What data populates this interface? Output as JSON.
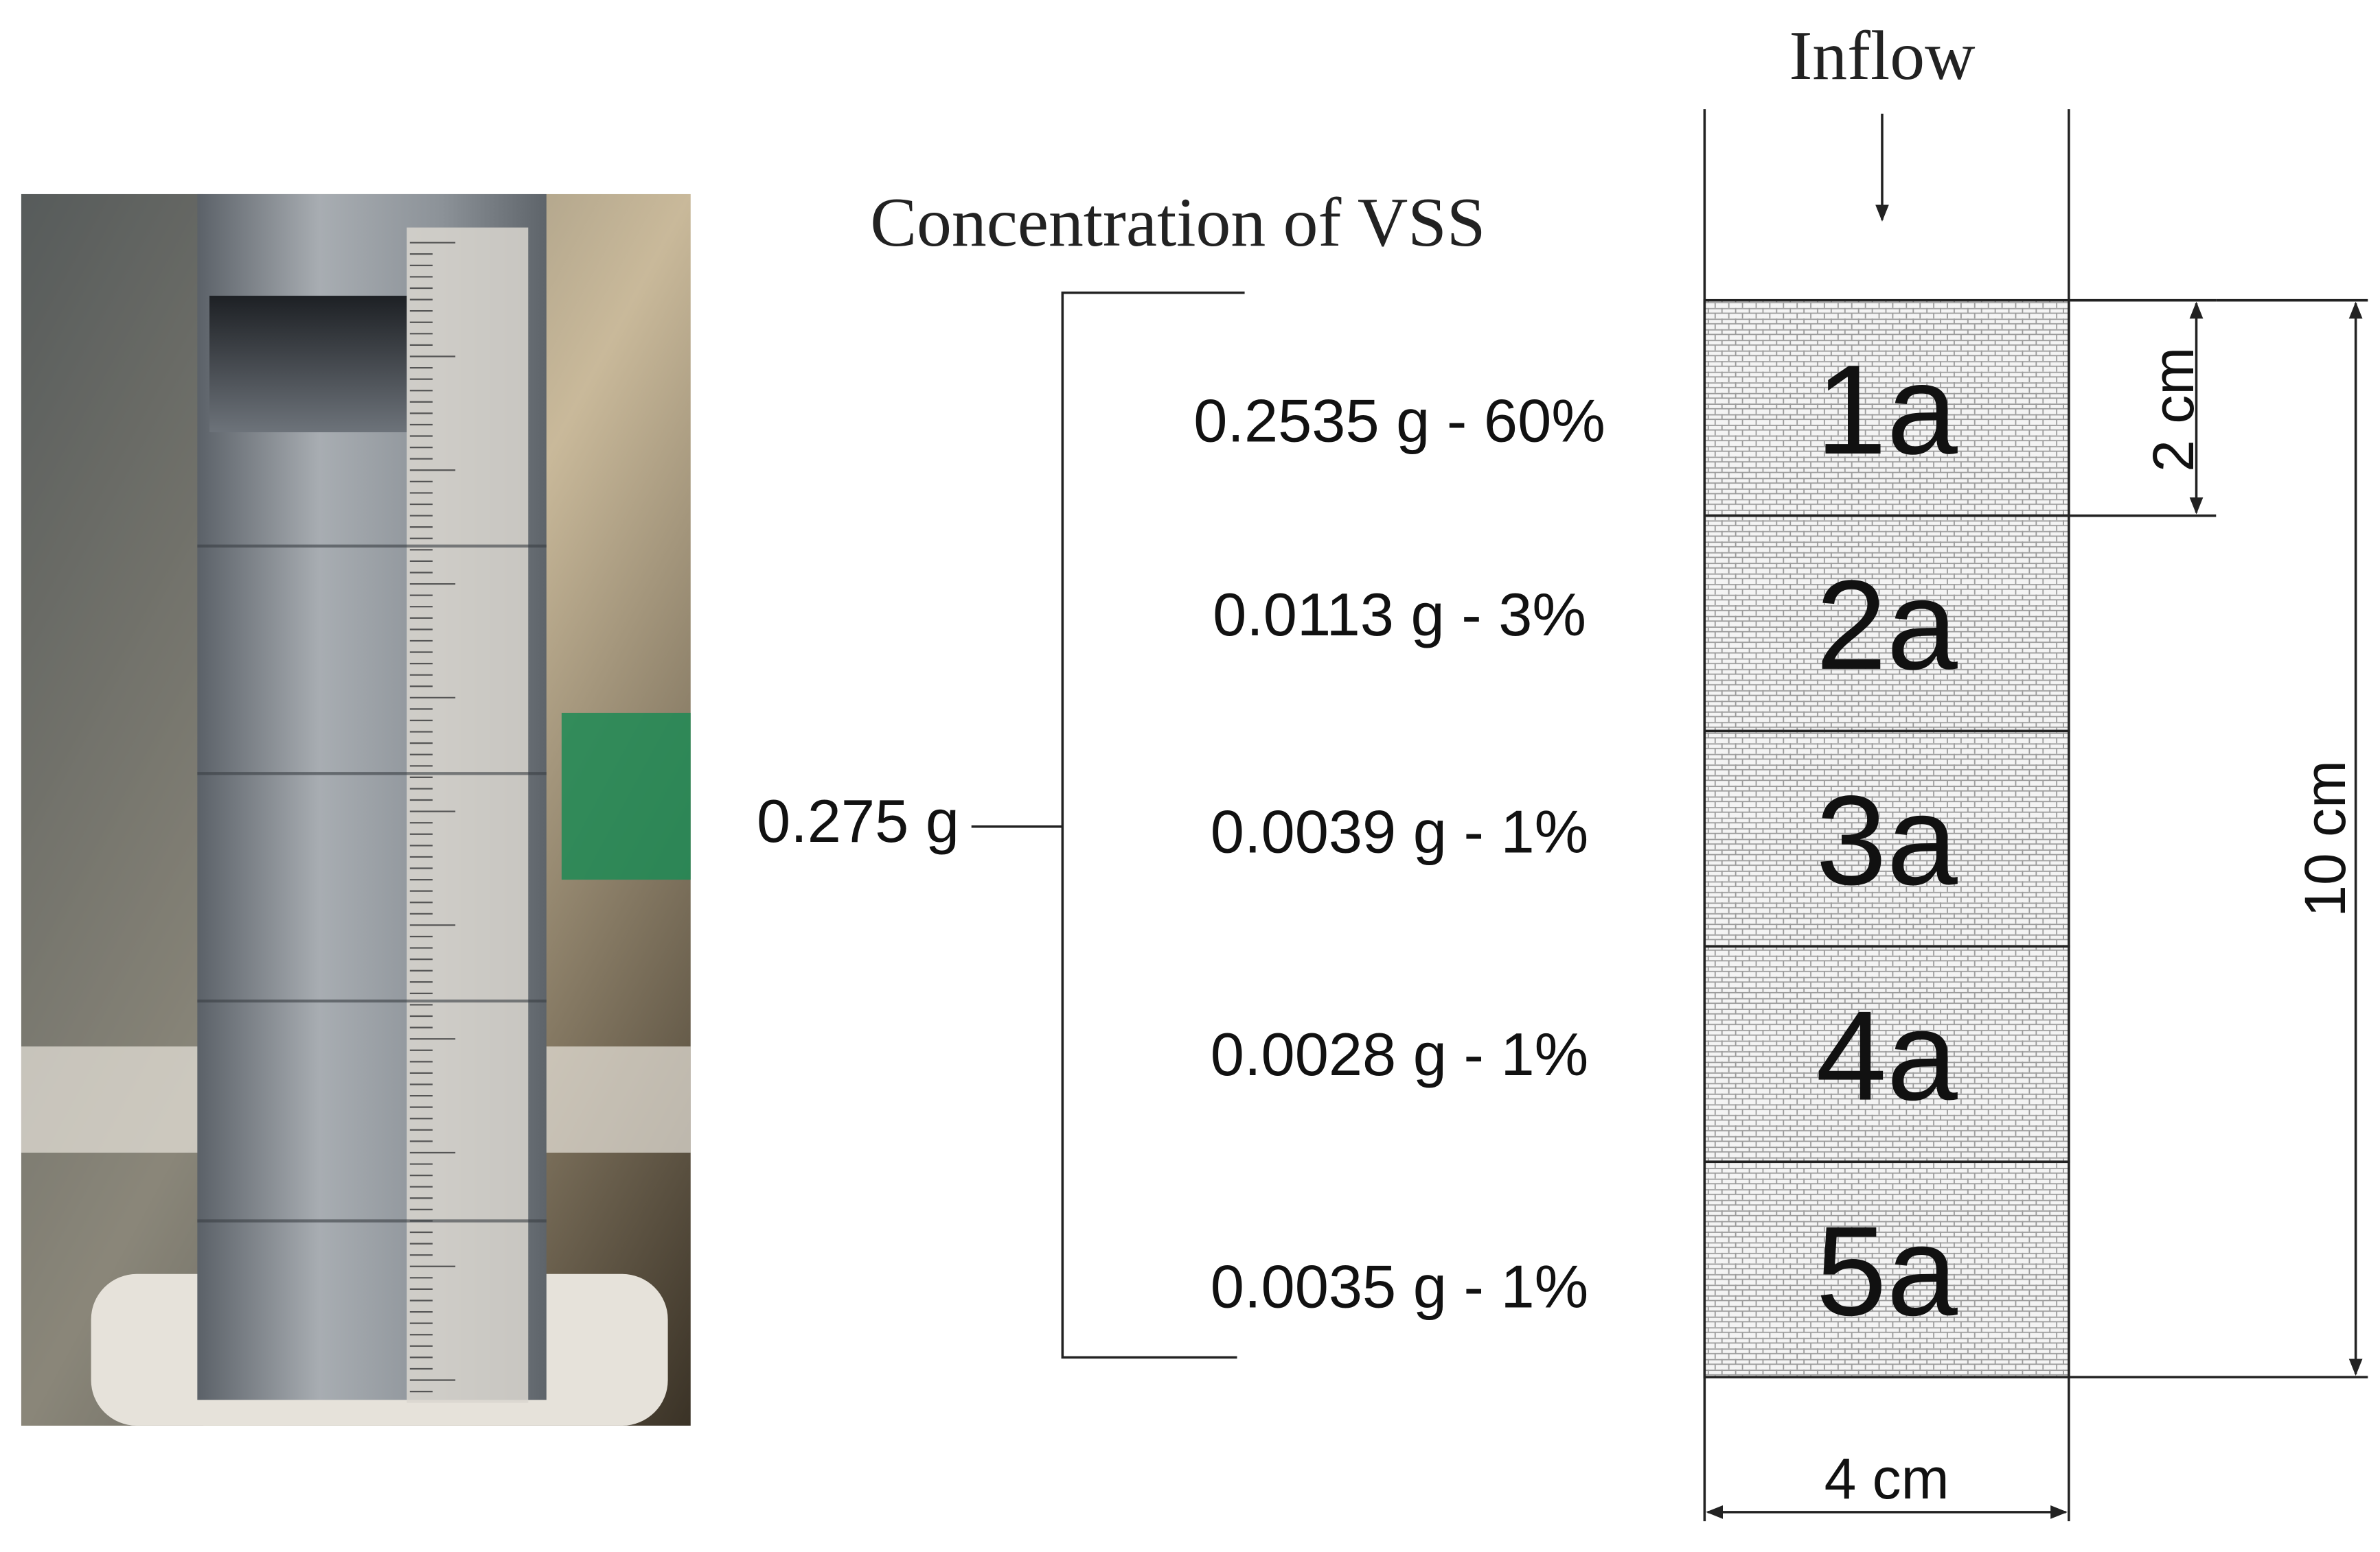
{
  "title": "Concentration of VSS",
  "inflow": "Inflow",
  "total": "0.275 g",
  "sections": [
    {
      "name": "1a",
      "amount": "0.2535 g - 60%"
    },
    {
      "name": "2a",
      "amount": "0.0113 g - 3%"
    },
    {
      "name": "3a",
      "amount": "0.0039 g - 1%"
    },
    {
      "name": "4a",
      "amount": "0.0028 g - 1%"
    },
    {
      "name": "5a",
      "amount": "0.0035 g - 1%"
    }
  ],
  "dimensions": {
    "section_height": "2 cm",
    "total_height": "10 cm",
    "width": "4 cm"
  }
}
